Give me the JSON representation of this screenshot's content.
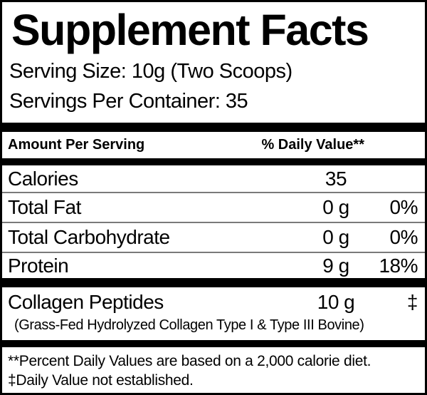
{
  "label": {
    "title": "Supplement Facts",
    "serving_size": "Serving Size: 10g (Two Scoops)",
    "servings_per_container": "Servings Per Container: 35",
    "header": {
      "amount_per_serving": "Amount Per Serving",
      "daily_value": "% Daily Value**"
    },
    "rows": [
      {
        "name": "Calories",
        "amount": "35",
        "dv": ""
      },
      {
        "name": "Total Fat",
        "amount": "0 g",
        "dv": "0%"
      },
      {
        "name": "Total Carbohydrate",
        "amount": "0 g",
        "dv": "0%"
      },
      {
        "name": "Protein",
        "amount": "9 g",
        "dv": "18%"
      }
    ],
    "collagen": {
      "name": "Collagen Peptides",
      "amount": "10 g",
      "dv": "‡",
      "detail": "(Grass-Fed Hydrolyzed Collagen Type I & Type III Bovine)"
    },
    "footnotes": [
      "**Percent Daily Values are based on a 2,000 calorie diet.",
      "‡Daily Value not established."
    ],
    "colors": {
      "background": "#ffffff",
      "text": "#000000",
      "thick_divider": "#000000",
      "thin_divider": "#7a7a7a"
    }
  }
}
